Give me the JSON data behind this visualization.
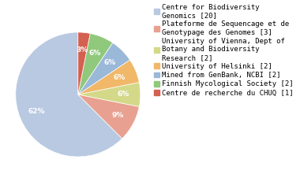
{
  "labels": [
    "Centre for Biodiversity\nGenomics [20]",
    "Plateforme de Sequencage et de\nGenotypage des Genomes [3]",
    "University of Vienna, Dept of\nBotany and Biodiversity\nResearch [2]",
    "University of Helsinki [2]",
    "Mined from GenBank, NCBI [2]",
    "Finnish Mycological Society [2]",
    "Centre de recherche du CHUQ [1]"
  ],
  "values": [
    20,
    3,
    2,
    2,
    2,
    2,
    1
  ],
  "colors": [
    "#b8c9e1",
    "#e8a090",
    "#d4d98a",
    "#f0b868",
    "#9ab8d8",
    "#90c87c",
    "#d46050"
  ],
  "startangle": 90,
  "legend_fontsize": 6.5,
  "autopct_fontsize": 6.5,
  "background_color": "#ffffff"
}
